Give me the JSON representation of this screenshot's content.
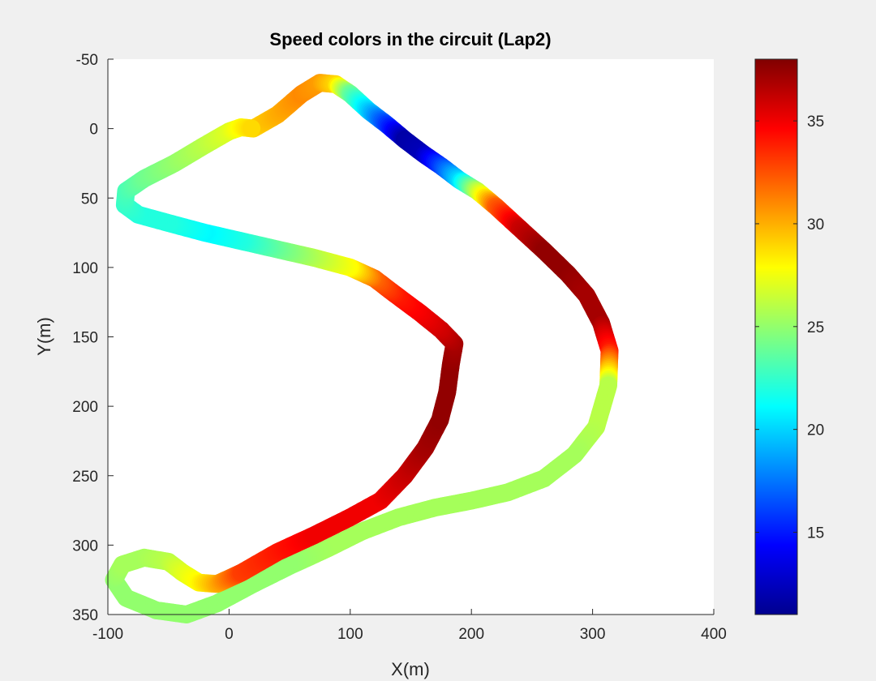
{
  "chart_data": {
    "type": "scatter",
    "title": "Speed colors in the circuit (Lap2)",
    "xlabel": "X(m)",
    "ylabel": "Y(m)",
    "xlim": [
      -100,
      400
    ],
    "ylim": [
      -50,
      350
    ],
    "y_reversed": true,
    "xticks": [
      -100,
      0,
      100,
      200,
      300,
      400
    ],
    "yticks": [
      -50,
      0,
      50,
      100,
      150,
      200,
      250,
      300,
      350
    ],
    "grid": false,
    "colormap": "jet",
    "colorbar": {
      "min": 11,
      "max": 38,
      "ticks": [
        15,
        20,
        25,
        30,
        35
      ],
      "location": "right"
    },
    "track": [
      {
        "x": 20,
        "y": 0,
        "speed": 29
      },
      {
        "x": 40,
        "y": -10,
        "speed": 30
      },
      {
        "x": 60,
        "y": -25,
        "speed": 31
      },
      {
        "x": 75,
        "y": -33,
        "speed": 30.5
      },
      {
        "x": 88,
        "y": -32,
        "speed": 29
      },
      {
        "x": 100,
        "y": -25,
        "speed": 24
      },
      {
        "x": 115,
        "y": -13,
        "speed": 20
      },
      {
        "x": 130,
        "y": -3,
        "speed": 16
      },
      {
        "x": 145,
        "y": 8,
        "speed": 12
      },
      {
        "x": 160,
        "y": 18,
        "speed": 12.5
      },
      {
        "x": 175,
        "y": 27,
        "speed": 16
      },
      {
        "x": 190,
        "y": 37,
        "speed": 20
      },
      {
        "x": 205,
        "y": 45,
        "speed": 26
      },
      {
        "x": 220,
        "y": 56,
        "speed": 32
      },
      {
        "x": 240,
        "y": 72,
        "speed": 36
      },
      {
        "x": 260,
        "y": 88,
        "speed": 37.5
      },
      {
        "x": 280,
        "y": 105,
        "speed": 37.5
      },
      {
        "x": 295,
        "y": 120,
        "speed": 37
      },
      {
        "x": 307,
        "y": 140,
        "speed": 37
      },
      {
        "x": 314,
        "y": 160,
        "speed": 34
      },
      {
        "x": 313,
        "y": 185,
        "speed": 26
      },
      {
        "x": 303,
        "y": 215,
        "speed": 26
      },
      {
        "x": 285,
        "y": 235,
        "speed": 25.5
      },
      {
        "x": 260,
        "y": 252,
        "speed": 25.5
      },
      {
        "x": 230,
        "y": 262,
        "speed": 25.5
      },
      {
        "x": 200,
        "y": 268,
        "speed": 25.5
      },
      {
        "x": 170,
        "y": 273,
        "speed": 25.5
      },
      {
        "x": 140,
        "y": 280,
        "speed": 25.5
      },
      {
        "x": 110,
        "y": 290,
        "speed": 25.5
      },
      {
        "x": 80,
        "y": 303,
        "speed": 25.5
      },
      {
        "x": 50,
        "y": 315,
        "speed": 25
      },
      {
        "x": 20,
        "y": 328,
        "speed": 25
      },
      {
        "x": -10,
        "y": 342,
        "speed": 25
      },
      {
        "x": -35,
        "y": 350,
        "speed": 25
      },
      {
        "x": -60,
        "y": 347,
        "speed": 25
      },
      {
        "x": -85,
        "y": 338,
        "speed": 25
      },
      {
        "x": -95,
        "y": 325,
        "speed": 25
      },
      {
        "x": -88,
        "y": 314,
        "speed": 25.5
      },
      {
        "x": -70,
        "y": 309,
        "speed": 25.5
      },
      {
        "x": -50,
        "y": 312,
        "speed": 26
      },
      {
        "x": -38,
        "y": 320,
        "speed": 27
      },
      {
        "x": -25,
        "y": 327,
        "speed": 28
      },
      {
        "x": -10,
        "y": 328,
        "speed": 30
      },
      {
        "x": 10,
        "y": 320,
        "speed": 33
      },
      {
        "x": 40,
        "y": 305,
        "speed": 34
      },
      {
        "x": 70,
        "y": 293,
        "speed": 35
      },
      {
        "x": 100,
        "y": 280,
        "speed": 35
      },
      {
        "x": 125,
        "y": 268,
        "speed": 35
      },
      {
        "x": 145,
        "y": 250,
        "speed": 36
      },
      {
        "x": 162,
        "y": 230,
        "speed": 37
      },
      {
        "x": 174,
        "y": 210,
        "speed": 37.5
      },
      {
        "x": 180,
        "y": 190,
        "speed": 37.5
      },
      {
        "x": 183,
        "y": 170,
        "speed": 37.5
      },
      {
        "x": 186,
        "y": 155,
        "speed": 37
      },
      {
        "x": 175,
        "y": 145,
        "speed": 36
      },
      {
        "x": 158,
        "y": 133,
        "speed": 35
      },
      {
        "x": 138,
        "y": 120,
        "speed": 34
      },
      {
        "x": 120,
        "y": 108,
        "speed": 32
      },
      {
        "x": 100,
        "y": 100,
        "speed": 28
      },
      {
        "x": 70,
        "y": 93,
        "speed": 26
      },
      {
        "x": 40,
        "y": 87,
        "speed": 24
      },
      {
        "x": 10,
        "y": 81,
        "speed": 22
      },
      {
        "x": -20,
        "y": 75,
        "speed": 21
      },
      {
        "x": -50,
        "y": 68,
        "speed": 22
      },
      {
        "x": -75,
        "y": 62,
        "speed": 22
      },
      {
        "x": -86,
        "y": 55,
        "speed": 22.5
      },
      {
        "x": -85,
        "y": 45,
        "speed": 23
      },
      {
        "x": -70,
        "y": 36,
        "speed": 24
      },
      {
        "x": -45,
        "y": 25,
        "speed": 25
      },
      {
        "x": -20,
        "y": 12,
        "speed": 26
      },
      {
        "x": 0,
        "y": 2,
        "speed": 27
      },
      {
        "x": 10,
        "y": -1,
        "speed": 28
      },
      {
        "x": 20,
        "y": 0,
        "speed": 29
      }
    ]
  }
}
